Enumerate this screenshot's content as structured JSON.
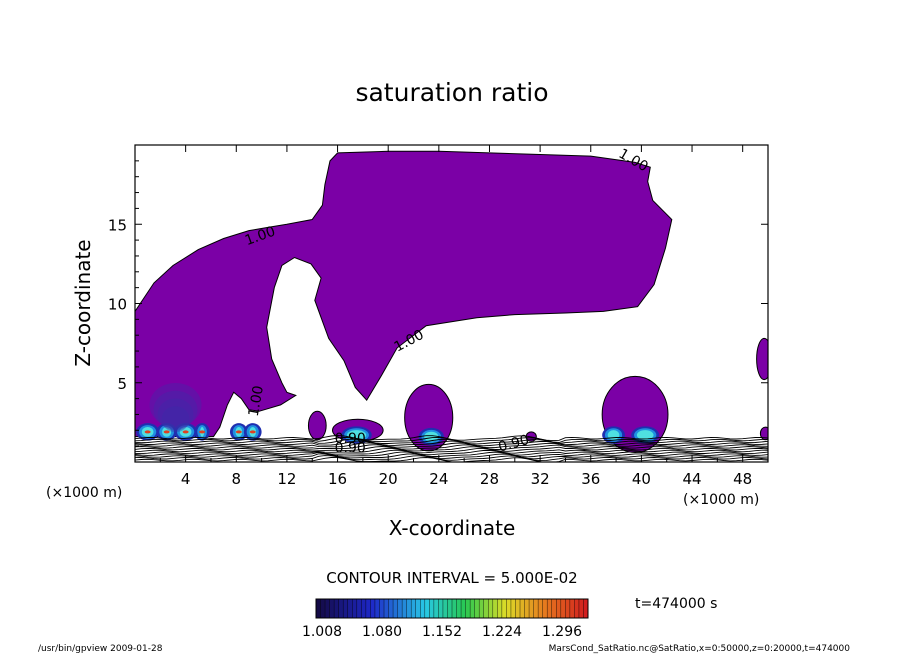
{
  "chart_data": {
    "type": "contour",
    "title": "saturation ratio",
    "xlabel": "X-coordinate",
    "ylabel": "Z-coordinate",
    "x_unit_left": "(×1000 m)",
    "x_unit_right": "(×1000 m)",
    "xlim": [
      0,
      50
    ],
    "ylim": [
      0,
      20
    ],
    "x_ticks": [
      4,
      8,
      12,
      16,
      20,
      24,
      28,
      32,
      36,
      40,
      44,
      48
    ],
    "y_ticks": [
      5,
      10,
      15
    ],
    "contour_interval_label": "CONTOUR INTERVAL = 5.000E-02",
    "contour_labels": [
      {
        "text": "1.00",
        "x": 10.0,
        "y": 14.0,
        "angle": -20
      },
      {
        "text": "1.00",
        "x": 39.2,
        "y": 18.8,
        "angle": 30
      },
      {
        "text": "1.00",
        "x": 21.8,
        "y": 7.4,
        "angle": -28
      },
      {
        "text": "1.00",
        "x": 9.9,
        "y": 3.8,
        "angle": -80
      },
      {
        "text": "0.90",
        "x": 17.0,
        "y": 0.6,
        "angle": 0
      },
      {
        "text": "0.90",
        "x": 17.0,
        "y": 1.2,
        "angle": 0
      },
      {
        "text": "0.90",
        "x": 30.0,
        "y": 0.9,
        "angle": -15
      }
    ],
    "saturated_region": {
      "value": 1.0,
      "color": "#7b00a6",
      "main_outline": [
        [
          0,
          9.5
        ],
        [
          1.5,
          11.3
        ],
        [
          3,
          12.4
        ],
        [
          5,
          13.4
        ],
        [
          7,
          14.1
        ],
        [
          9,
          14.6
        ],
        [
          10.5,
          14.8
        ],
        [
          12,
          15.0
        ],
        [
          14,
          15.3
        ],
        [
          14.8,
          16.2
        ],
        [
          15,
          17.5
        ],
        [
          15.4,
          19.0
        ],
        [
          16,
          19.5
        ],
        [
          20,
          19.6
        ],
        [
          24,
          19.6
        ],
        [
          28,
          19.5
        ],
        [
          32,
          19.4
        ],
        [
          36,
          19.3
        ],
        [
          39.5,
          18.9
        ],
        [
          40.7,
          18.6
        ],
        [
          40.5,
          17.7
        ],
        [
          40.9,
          16.5
        ],
        [
          42.4,
          15.3
        ],
        [
          41.9,
          13.5
        ],
        [
          41.0,
          11.2
        ],
        [
          39.7,
          9.8
        ],
        [
          37,
          9.5
        ],
        [
          34,
          9.4
        ],
        [
          30,
          9.3
        ],
        [
          27,
          9.1
        ],
        [
          23,
          8.6
        ],
        [
          20.7,
          7.2
        ],
        [
          19.5,
          5.5
        ],
        [
          18.3,
          3.9
        ],
        [
          17.4,
          4.7
        ],
        [
          16.5,
          6.4
        ],
        [
          15.3,
          7.8
        ],
        [
          14.2,
          10.2
        ],
        [
          14.7,
          11.6
        ],
        [
          13.9,
          12.5
        ],
        [
          12.6,
          12.9
        ],
        [
          11.6,
          12.4
        ],
        [
          11.0,
          11.0
        ],
        [
          10.4,
          8.5
        ],
        [
          10.8,
          6.5
        ],
        [
          11.6,
          5.0
        ],
        [
          12.0,
          4.4
        ],
        [
          12.7,
          4.2
        ],
        [
          11.5,
          3.6
        ],
        [
          9.8,
          3.2
        ],
        [
          9.0,
          3.3
        ],
        [
          8.4,
          4.0
        ],
        [
          7.8,
          4.4
        ],
        [
          7.3,
          3.6
        ],
        [
          6.7,
          2.2
        ],
        [
          6.2,
          1.6
        ],
        [
          0,
          1.6
        ]
      ],
      "cells": [
        {
          "cx": 14.4,
          "cy": 2.3,
          "rx": 0.7,
          "ry": 0.9
        },
        {
          "cx": 17.6,
          "cy": 2.0,
          "rx": 2.0,
          "ry": 0.7
        },
        {
          "cx": 23.2,
          "cy": 2.8,
          "rx": 1.9,
          "ry": 2.1
        },
        {
          "cx": 31.3,
          "cy": 1.6,
          "rx": 0.4,
          "ry": 0.3
        },
        {
          "cx": 39.5,
          "cy": 3.0,
          "rx": 2.6,
          "ry": 2.4
        },
        {
          "cx": 49.7,
          "cy": 6.5,
          "rx": 0.6,
          "ry": 1.3
        },
        {
          "cx": 49.8,
          "cy": 1.8,
          "rx": 0.4,
          "ry": 0.4
        }
      ]
    },
    "colorbar": {
      "min": 1.008,
      "max": 1.332,
      "tick_labels": [
        "1.008",
        "1.080",
        "1.152",
        "1.224",
        "1.296"
      ]
    },
    "time_label": "t=474000 s",
    "grid": false,
    "legend_position": "bottom"
  },
  "footer": {
    "left": "/usr/bin/gpview  2009-01-28",
    "right": "MarsCond_SatRatio.nc@SatRatio,x=0:50000,z=0:20000,t=474000"
  }
}
